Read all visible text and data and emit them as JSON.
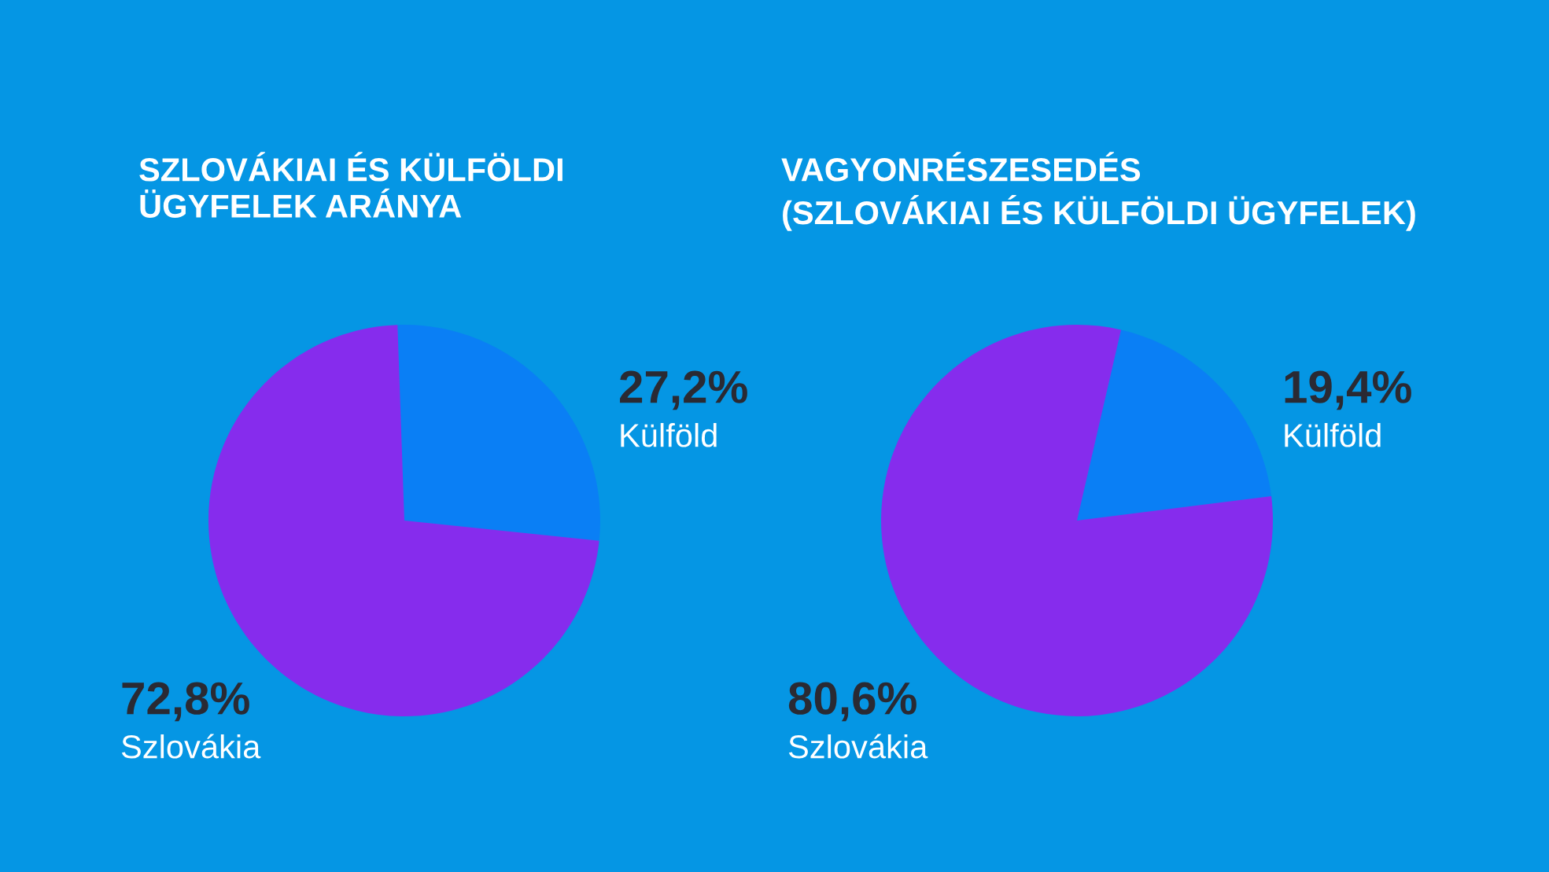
{
  "chart_data": [
    {
      "type": "pie",
      "title": "SZLOVÁKIAI ÉS KÜLFÖLDI\nÜGYFELEK ARÁNYA",
      "categories": [
        "Külföld",
        "Szlovákia"
      ],
      "values": [
        27.2,
        72.8
      ],
      "colors": [
        "#0a7ff5",
        "#862ced"
      ],
      "value_labels": [
        "27,2%",
        "72,8%"
      ]
    },
    {
      "type": "pie",
      "title": "VAGYONRÉSZESEDÉS\n(SZLOVÁKIAI ÉS KÜLFÖLDI ÜGYFELEK)",
      "categories": [
        "Külföld",
        "Szlovákia"
      ],
      "values": [
        19.4,
        80.6
      ],
      "colors": [
        "#0a7ff5",
        "#862ced"
      ],
      "value_labels": [
        "19,4%",
        "80,6%"
      ]
    }
  ]
}
